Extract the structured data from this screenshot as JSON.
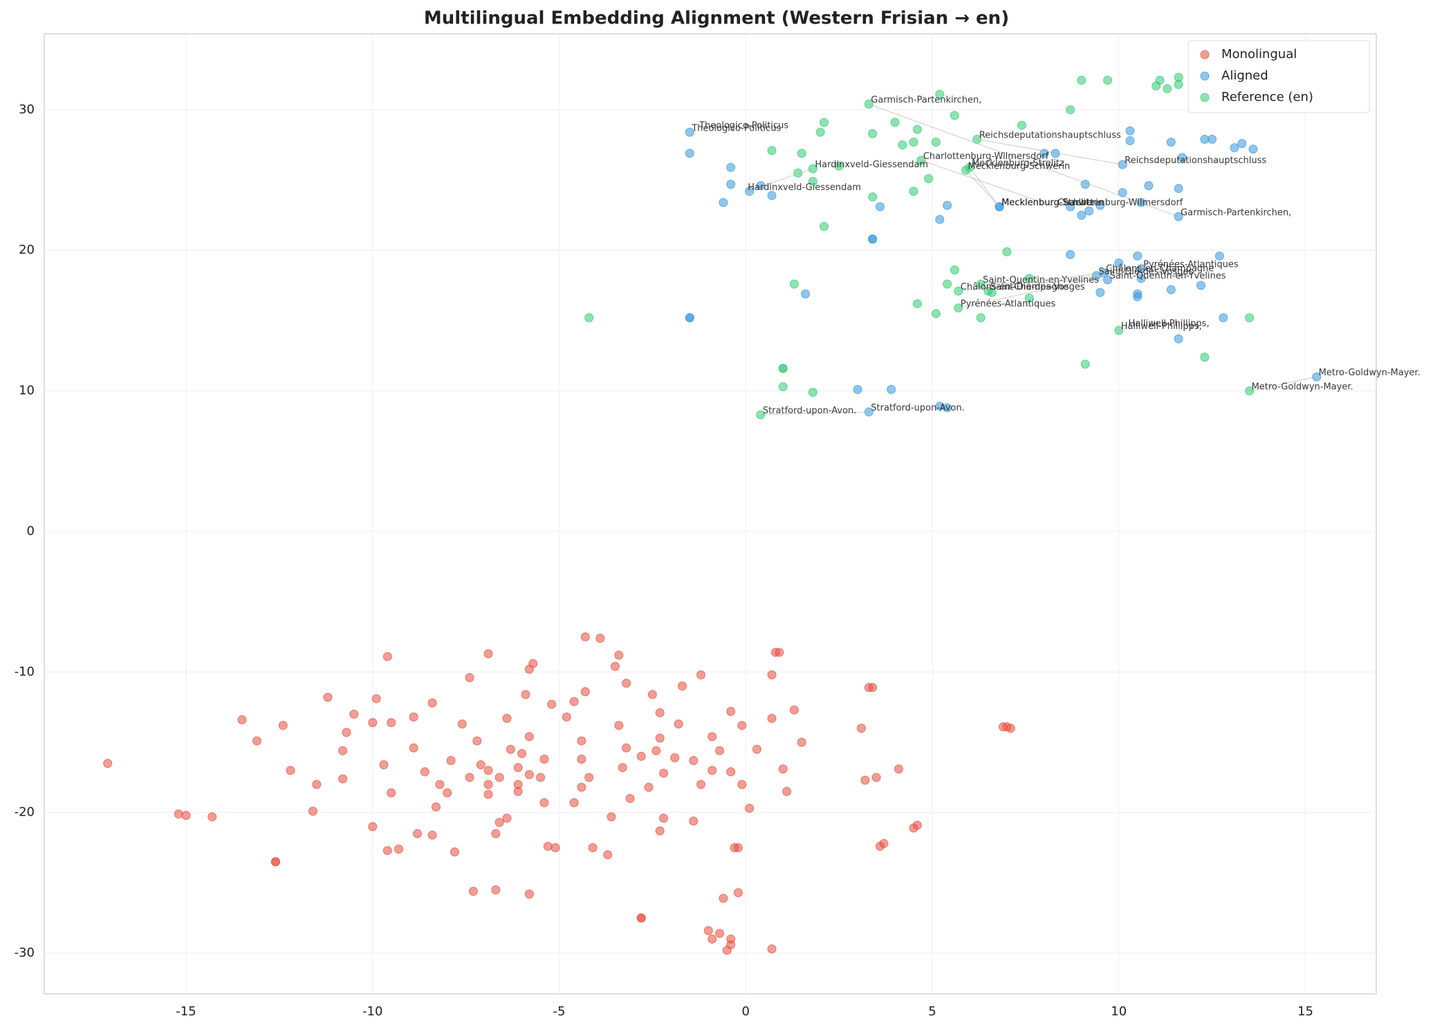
{
  "chart_data": {
    "type": "scatter",
    "title": "Multilingual Embedding Alignment (Western Frisian → en)",
    "xlim": [
      -18.8,
      16.9
    ],
    "ylim": [
      -32.9,
      35.4
    ],
    "xticks": [
      -15,
      -10,
      -5,
      0,
      5,
      10,
      15
    ],
    "yticks": [
      -30,
      -20,
      -10,
      0,
      10,
      20,
      30
    ],
    "grid": true,
    "legend": "upper right",
    "series": [
      {
        "name": "Monolingual",
        "color": "#e74c3c",
        "x": [
          -17.1,
          -15.2,
          -15.0,
          -14.3,
          -13.5,
          -13.1,
          -12.6,
          -12.6,
          -12.4,
          -12.2,
          -11.6,
          -11.5,
          -11.2,
          -10.8,
          -10.8,
          -10.7,
          -10.5,
          -10.0,
          -10.0,
          -9.9,
          -9.7,
          -9.6,
          -9.6,
          -9.5,
          -9.5,
          -9.3,
          -8.9,
          -8.9,
          -8.8,
          -8.6,
          -8.4,
          -8.4,
          -8.3,
          -8.2,
          -8.0,
          -7.9,
          -7.8,
          -7.6,
          -7.4,
          -7.4,
          -7.3,
          -7.2,
          -7.1,
          -6.9,
          -6.9,
          -6.9,
          -6.9,
          -6.7,
          -6.7,
          -6.6,
          -6.6,
          -6.4,
          -6.4,
          -6.3,
          -6.1,
          -6.1,
          -6.1,
          -6.0,
          -5.9,
          -5.8,
          -5.8,
          -5.8,
          -5.7,
          -5.8,
          -5.5,
          -5.4,
          -5.4,
          -5.3,
          -5.2,
          -5.1,
          -4.8,
          -4.6,
          -4.6,
          -4.4,
          -4.4,
          -4.4,
          -4.3,
          -4.3,
          -4.2,
          -4.1,
          -3.9,
          -3.7,
          -3.6,
          -3.5,
          -3.4,
          -3.4,
          -3.3,
          -3.2,
          -3.2,
          -3.1,
          -2.8,
          -2.8,
          -2.8,
          -2.6,
          -2.5,
          -2.4,
          -2.3,
          -2.3,
          -2.2,
          -2.3,
          -2.2,
          -1.9,
          -1.8,
          -1.7,
          -1.4,
          -1.4,
          -1.2,
          -1.2,
          -0.9,
          -0.9,
          -1.0,
          -0.9,
          -0.7,
          -0.7,
          -0.6,
          -0.4,
          -0.4,
          -0.5,
          -0.4,
          -0.4,
          -0.2,
          -0.3,
          -0.2,
          -0.1,
          -0.1,
          0.1,
          0.3,
          0.7,
          0.7,
          0.7,
          0.9,
          0.8,
          1.0,
          1.1,
          1.3,
          1.5,
          3.1,
          3.3,
          3.4,
          3.2,
          3.5,
          3.6,
          3.7,
          4.1,
          4.5,
          4.6,
          6.9,
          7.0,
          7.1
        ],
        "values": [
          -16.5,
          -20.1,
          -20.2,
          -20.3,
          -13.4,
          -14.9,
          -23.5,
          -23.5,
          -13.8,
          -17.0,
          -19.9,
          -18.0,
          -11.8,
          -17.6,
          -15.6,
          -14.3,
          -13.0,
          -21.0,
          -13.6,
          -11.9,
          -16.6,
          -22.7,
          -8.9,
          -13.6,
          -18.6,
          -22.6,
          -15.4,
          -13.2,
          -21.5,
          -17.1,
          -21.6,
          -12.2,
          -19.6,
          -18.0,
          -18.6,
          -16.3,
          -22.8,
          -13.7,
          -10.4,
          -17.5,
          -25.6,
          -14.9,
          -16.6,
          -8.7,
          -18.0,
          -18.7,
          -17.0,
          -21.5,
          -25.5,
          -17.5,
          -20.7,
          -20.4,
          -13.3,
          -15.5,
          -18.0,
          -16.8,
          -18.5,
          -15.8,
          -11.6,
          -14.6,
          -17.3,
          -25.8,
          -9.4,
          -9.8,
          -17.5,
          -19.3,
          -16.2,
          -22.4,
          -12.3,
          -22.5,
          -13.2,
          -12.1,
          -19.3,
          -18.2,
          -16.2,
          -14.9,
          -7.5,
          -11.4,
          -17.5,
          -22.5,
          -7.6,
          -23.0,
          -20.3,
          -9.6,
          -8.8,
          -13.8,
          -16.8,
          -10.8,
          -15.4,
          -19.0,
          -27.5,
          -27.5,
          -16.0,
          -18.2,
          -11.6,
          -15.6,
          -12.9,
          -14.7,
          -17.2,
          -21.3,
          -20.4,
          -16.1,
          -13.7,
          -11.0,
          -20.6,
          -16.3,
          -10.2,
          -18.0,
          -17.0,
          -14.6,
          -28.4,
          -29.0,
          -15.6,
          -28.6,
          -26.1,
          -12.8,
          -17.1,
          -29.8,
          -29.4,
          -29.0,
          -22.5,
          -22.5,
          -25.7,
          -18.0,
          -13.8,
          -19.7,
          -15.5,
          -10.2,
          -13.3,
          -29.7,
          -8.6,
          -8.6,
          -16.9,
          -18.5,
          -12.7,
          -15.0,
          -14.0,
          -11.1,
          -11.1,
          -17.7,
          -17.5,
          -22.4,
          -22.2,
          -16.9,
          -21.1,
          -20.9,
          -13.9,
          -13.9,
          -14.0
        ]
      },
      {
        "name": "Aligned",
        "color": "#3498db",
        "x": [
          -1.5,
          -1.5,
          -1.5,
          -1.5,
          -0.6,
          -0.4,
          -0.4,
          0.1,
          0.4,
          0.7,
          1.6,
          3.0,
          3.3,
          3.4,
          3.4,
          3.6,
          3.9,
          5.2,
          5.2,
          5.4,
          5.4,
          6.8,
          6.8,
          8.0,
          8.3,
          8.7,
          8.7,
          9.0,
          9.1,
          9.2,
          9.4,
          9.5,
          9.5,
          9.6,
          9.7,
          10.0,
          10.1,
          10.1,
          10.3,
          10.3,
          10.5,
          10.5,
          10.5,
          10.6,
          10.6,
          10.6,
          10.8,
          11.4,
          11.4,
          11.6,
          11.6,
          11.6,
          11.7,
          12.2,
          12.3,
          12.5,
          12.7,
          12.8,
          13.1,
          13.3,
          13.6,
          15.3
        ],
        "values": [
          28.4,
          26.9,
          15.2,
          15.2,
          23.4,
          25.9,
          24.7,
          24.2,
          24.6,
          23.9,
          16.9,
          10.1,
          8.5,
          20.8,
          20.8,
          23.1,
          10.1,
          22.2,
          8.9,
          8.8,
          23.2,
          23.1,
          23.1,
          26.9,
          26.9,
          23.1,
          19.7,
          22.5,
          24.7,
          22.8,
          18.2,
          23.2,
          17.0,
          18.4,
          17.9,
          19.1,
          24.1,
          26.1,
          28.5,
          27.8,
          19.6,
          16.7,
          16.9,
          18.7,
          23.4,
          18.0,
          24.6,
          27.7,
          17.2,
          24.4,
          22.4,
          13.7,
          26.6,
          17.5,
          27.9,
          27.9,
          19.6,
          15.2,
          27.3,
          27.6,
          27.2,
          11.0
        ]
      },
      {
        "name": "Reference (en)",
        "color": "#2ecc71",
        "x": [
          -4.2,
          0.4,
          0.7,
          1.0,
          1.0,
          1.0,
          1.3,
          1.4,
          1.5,
          1.8,
          1.8,
          1.8,
          2.0,
          2.1,
          2.1,
          2.5,
          3.3,
          3.4,
          3.4,
          4.0,
          4.2,
          4.5,
          4.5,
          4.6,
          4.6,
          4.7,
          4.9,
          5.1,
          5.1,
          5.2,
          5.4,
          5.6,
          5.6,
          5.7,
          5.7,
          5.9,
          6.0,
          6.2,
          6.3,
          6.3,
          6.5,
          6.6,
          7.0,
          7.4,
          7.6,
          7.6,
          8.7,
          9.0,
          9.1,
          9.7,
          10.0,
          11.0,
          11.1,
          11.3,
          11.6,
          11.6,
          12.3,
          13.5,
          13.5
        ],
        "values": [
          15.2,
          8.3,
          27.1,
          11.6,
          10.3,
          11.6,
          17.6,
          25.5,
          26.9,
          24.9,
          9.9,
          25.8,
          28.4,
          29.1,
          21.7,
          26.0,
          30.4,
          28.3,
          23.8,
          29.1,
          27.5,
          27.7,
          24.2,
          28.6,
          16.2,
          26.4,
          25.1,
          27.7,
          15.5,
          31.1,
          17.6,
          29.6,
          18.6,
          17.1,
          15.9,
          25.7,
          25.9,
          27.9,
          15.2,
          17.6,
          17.1,
          17.0,
          19.9,
          28.9,
          18.0,
          16.6,
          30.0,
          32.1,
          11.9,
          32.1,
          14.3,
          31.7,
          32.1,
          31.5,
          31.8,
          32.3,
          12.4,
          15.2,
          10.0
        ]
      }
    ],
    "annotations": [
      {
        "text": "Garmisch-Partenkirchen,",
        "en": [
          3.3,
          30.4
        ],
        "aligned": [
          11.6,
          22.4
        ]
      },
      {
        "text": "Theologico-Politicus",
        "en": [
          -1.3,
          28.6
        ],
        "aligned": [
          -1.5,
          28.4
        ]
      },
      {
        "text": "Reichsdeputationshauptschluss",
        "en": [
          6.2,
          27.9
        ],
        "aligned": [
          10.1,
          26.1
        ]
      },
      {
        "text": "Charlottenburg-Wilmersdorf",
        "en": [
          4.7,
          26.4
        ],
        "aligned": [
          8.3,
          23.1
        ]
      },
      {
        "text": "Mecklenburg-Schwerin",
        "en": [
          5.9,
          25.7
        ],
        "aligned": [
          6.8,
          23.1
        ]
      },
      {
        "text": "Mecklenburg-Strelitz",
        "en": [
          6.0,
          25.9
        ],
        "aligned": [
          6.8,
          23.1
        ]
      },
      {
        "text": "Hardinxveld-Giessendam",
        "en": [
          1.8,
          25.8
        ],
        "aligned": [
          0.0,
          24.2
        ]
      },
      {
        "text": "Saint-Quentin-en-Yvelines",
        "en": [
          6.3,
          17.6
        ],
        "aligned": [
          9.7,
          17.9
        ]
      },
      {
        "text": "Saint-Dié-des-Vosges",
        "en": [
          6.5,
          17.1
        ],
        "aligned": [
          9.4,
          18.2
        ]
      },
      {
        "text": "Châlons-en-Champagne",
        "en": [
          5.7,
          17.1
        ],
        "aligned": [
          9.6,
          18.4
        ]
      },
      {
        "text": "Pyrénées-Atlantiques",
        "en": [
          5.7,
          15.9
        ],
        "aligned": [
          10.6,
          18.7
        ]
      },
      {
        "text": "Halliwell-Phillipps,",
        "en": [
          10.0,
          14.3
        ],
        "aligned": [
          10.2,
          14.5
        ]
      },
      {
        "text": "Metro-Goldwyn-Mayer.",
        "en": [
          13.5,
          10.0
        ],
        "aligned": [
          15.3,
          11.0
        ]
      },
      {
        "text": "Stratford-upon-Avon.",
        "en": [
          0.4,
          8.3
        ],
        "aligned": [
          3.3,
          8.5
        ]
      }
    ]
  }
}
